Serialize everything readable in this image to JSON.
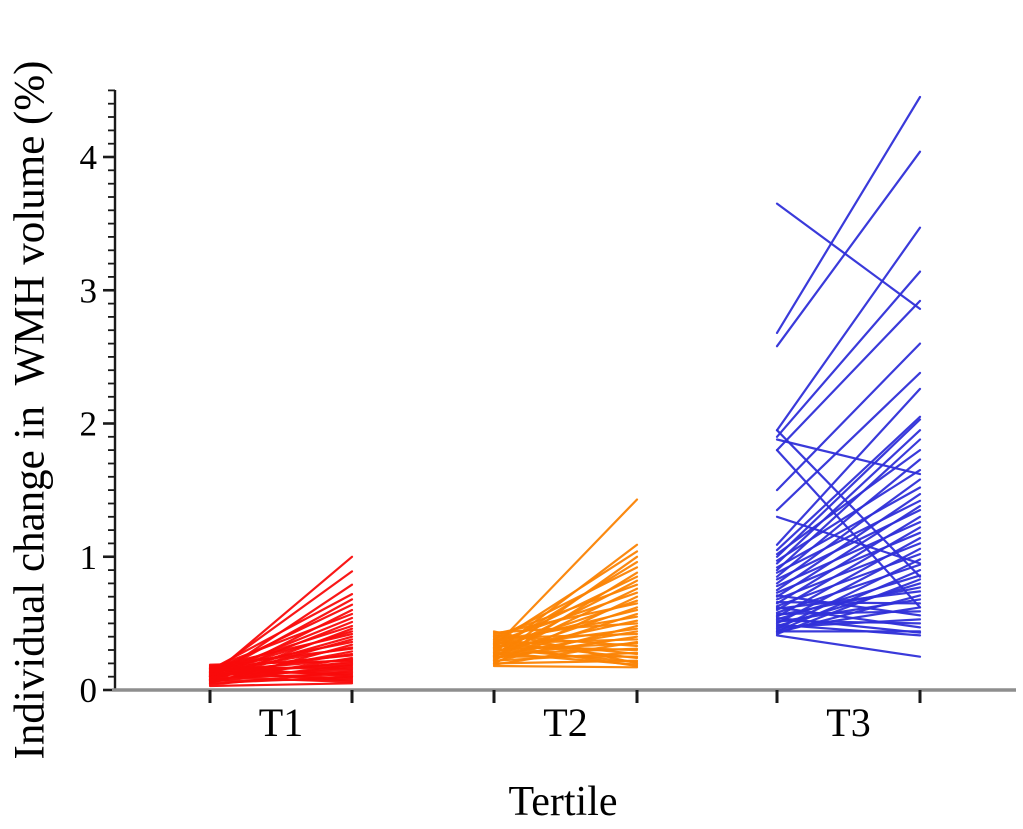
{
  "chart_data": {
    "type": "line",
    "subtype": "individual-change-spaghetti",
    "title": "",
    "xlabel": "Tertile",
    "ylabel": "Individual change in  WMH volume (%)",
    "x_categories": [
      "T1",
      "T2",
      "T3"
    ],
    "ylim": [
      0,
      4.5
    ],
    "yticks": [
      0,
      1,
      2,
      3,
      4
    ],
    "ytick_labels": [
      "0",
      "1",
      "2",
      "3",
      "4"
    ],
    "minor_tick_step": 0.1,
    "grid": false,
    "legend": "none",
    "x_axis_color": "#8E8E8E",
    "y_axis_color": "#1A1A1A",
    "tick_color": "#1A1A1A",
    "series": [
      {
        "name": "T1",
        "color": "#F90B0B",
        "lines": [
          [
            0.1,
            1.0
          ],
          [
            0.12,
            0.89
          ],
          [
            0.08,
            0.79
          ],
          [
            0.15,
            0.72
          ],
          [
            0.1,
            0.68
          ],
          [
            0.13,
            0.64
          ],
          [
            0.07,
            0.6
          ],
          [
            0.16,
            0.57
          ],
          [
            0.11,
            0.54
          ],
          [
            0.09,
            0.51
          ],
          [
            0.14,
            0.48
          ],
          [
            0.06,
            0.46
          ],
          [
            0.12,
            0.44
          ],
          [
            0.17,
            0.42
          ],
          [
            0.1,
            0.4
          ],
          [
            0.08,
            0.38
          ],
          [
            0.15,
            0.36
          ],
          [
            0.05,
            0.34
          ],
          [
            0.13,
            0.32
          ],
          [
            0.18,
            0.31
          ],
          [
            0.09,
            0.29
          ],
          [
            0.11,
            0.27
          ],
          [
            0.16,
            0.26
          ],
          [
            0.07,
            0.24
          ],
          [
            0.14,
            0.23
          ],
          [
            0.19,
            0.22
          ],
          [
            0.1,
            0.21
          ],
          [
            0.12,
            0.2
          ],
          [
            0.06,
            0.19
          ],
          [
            0.15,
            0.18
          ],
          [
            0.08,
            0.17
          ],
          [
            0.17,
            0.16
          ],
          [
            0.11,
            0.15
          ],
          [
            0.04,
            0.14
          ],
          [
            0.13,
            0.13
          ],
          [
            0.09,
            0.12
          ],
          [
            0.16,
            0.11
          ],
          [
            0.05,
            0.1
          ],
          [
            0.12,
            0.09
          ],
          [
            0.07,
            0.08
          ],
          [
            0.14,
            0.07
          ],
          [
            0.1,
            0.06
          ],
          [
            0.18,
            0.1
          ],
          [
            0.03,
            0.05
          ]
        ]
      },
      {
        "name": "T2",
        "color": "#FB8304",
        "lines": [
          [
            0.32,
            1.43
          ],
          [
            0.28,
            1.09
          ],
          [
            0.35,
            1.04
          ],
          [
            0.24,
            1.0
          ],
          [
            0.3,
            0.96
          ],
          [
            0.38,
            0.92
          ],
          [
            0.22,
            0.88
          ],
          [
            0.33,
            0.85
          ],
          [
            0.27,
            0.82
          ],
          [
            0.4,
            0.79
          ],
          [
            0.25,
            0.76
          ],
          [
            0.36,
            0.73
          ],
          [
            0.2,
            0.7
          ],
          [
            0.31,
            0.67
          ],
          [
            0.42,
            0.65
          ],
          [
            0.26,
            0.62
          ],
          [
            0.34,
            0.6
          ],
          [
            0.23,
            0.57
          ],
          [
            0.37,
            0.55
          ],
          [
            0.29,
            0.52
          ],
          [
            0.43,
            0.5
          ],
          [
            0.21,
            0.48
          ],
          [
            0.32,
            0.46
          ],
          [
            0.26,
            0.44
          ],
          [
            0.39,
            0.42
          ],
          [
            0.24,
            0.4
          ],
          [
            0.35,
            0.38
          ],
          [
            0.19,
            0.36
          ],
          [
            0.3,
            0.35
          ],
          [
            0.41,
            0.33
          ],
          [
            0.27,
            0.31
          ],
          [
            0.33,
            0.3
          ],
          [
            0.22,
            0.28
          ],
          [
            0.38,
            0.27
          ],
          [
            0.25,
            0.25
          ],
          [
            0.36,
            0.24
          ],
          [
            0.2,
            0.22
          ],
          [
            0.31,
            0.21
          ],
          [
            0.44,
            0.2
          ],
          [
            0.28,
            0.19
          ],
          [
            0.34,
            0.18
          ],
          [
            0.18,
            0.17
          ]
        ]
      },
      {
        "name": "T3",
        "color": "#3030D9",
        "lines": [
          [
            3.65,
            2.86
          ],
          [
            2.68,
            4.45
          ],
          [
            2.58,
            4.04
          ],
          [
            1.95,
            3.47
          ],
          [
            1.9,
            3.14
          ],
          [
            1.8,
            2.92
          ],
          [
            1.95,
            0.85
          ],
          [
            1.88,
            1.62
          ],
          [
            1.8,
            0.62
          ],
          [
            1.5,
            2.6
          ],
          [
            1.35,
            2.38
          ],
          [
            1.3,
            0.95
          ],
          [
            1.09,
            2.26
          ],
          [
            1.05,
            2.05
          ],
          [
            1.0,
            2.03
          ],
          [
            0.95,
            1.95
          ],
          [
            0.9,
            1.88
          ],
          [
            1.02,
            1.8
          ],
          [
            0.85,
            1.73
          ],
          [
            0.97,
            1.65
          ],
          [
            0.8,
            1.58
          ],
          [
            0.92,
            1.52
          ],
          [
            0.75,
            1.47
          ],
          [
            0.88,
            1.42
          ],
          [
            0.7,
            1.38
          ],
          [
            0.83,
            1.35
          ],
          [
            0.65,
            1.3
          ],
          [
            0.78,
            1.26
          ],
          [
            0.6,
            1.22
          ],
          [
            0.73,
            1.18
          ],
          [
            0.55,
            1.14
          ],
          [
            0.68,
            1.1
          ],
          [
            0.5,
            1.06
          ],
          [
            0.63,
            1.02
          ],
          [
            0.46,
            0.98
          ],
          [
            0.58,
            0.94
          ],
          [
            0.44,
            0.9
          ],
          [
            0.53,
            0.86
          ],
          [
            0.42,
            0.83
          ],
          [
            0.48,
            0.8
          ],
          [
            0.56,
            0.77
          ],
          [
            0.61,
            0.74
          ],
          [
            0.43,
            0.71
          ],
          [
            0.51,
            0.68
          ],
          [
            0.66,
            0.65
          ],
          [
            0.45,
            0.62
          ],
          [
            0.57,
            0.59
          ],
          [
            0.71,
            0.56
          ],
          [
            0.47,
            0.53
          ],
          [
            0.52,
            0.5
          ],
          [
            0.62,
            0.47
          ],
          [
            0.44,
            0.44
          ],
          [
            0.49,
            0.41
          ],
          [
            0.54,
            0.43
          ],
          [
            0.41,
            0.25
          ]
        ]
      }
    ]
  }
}
